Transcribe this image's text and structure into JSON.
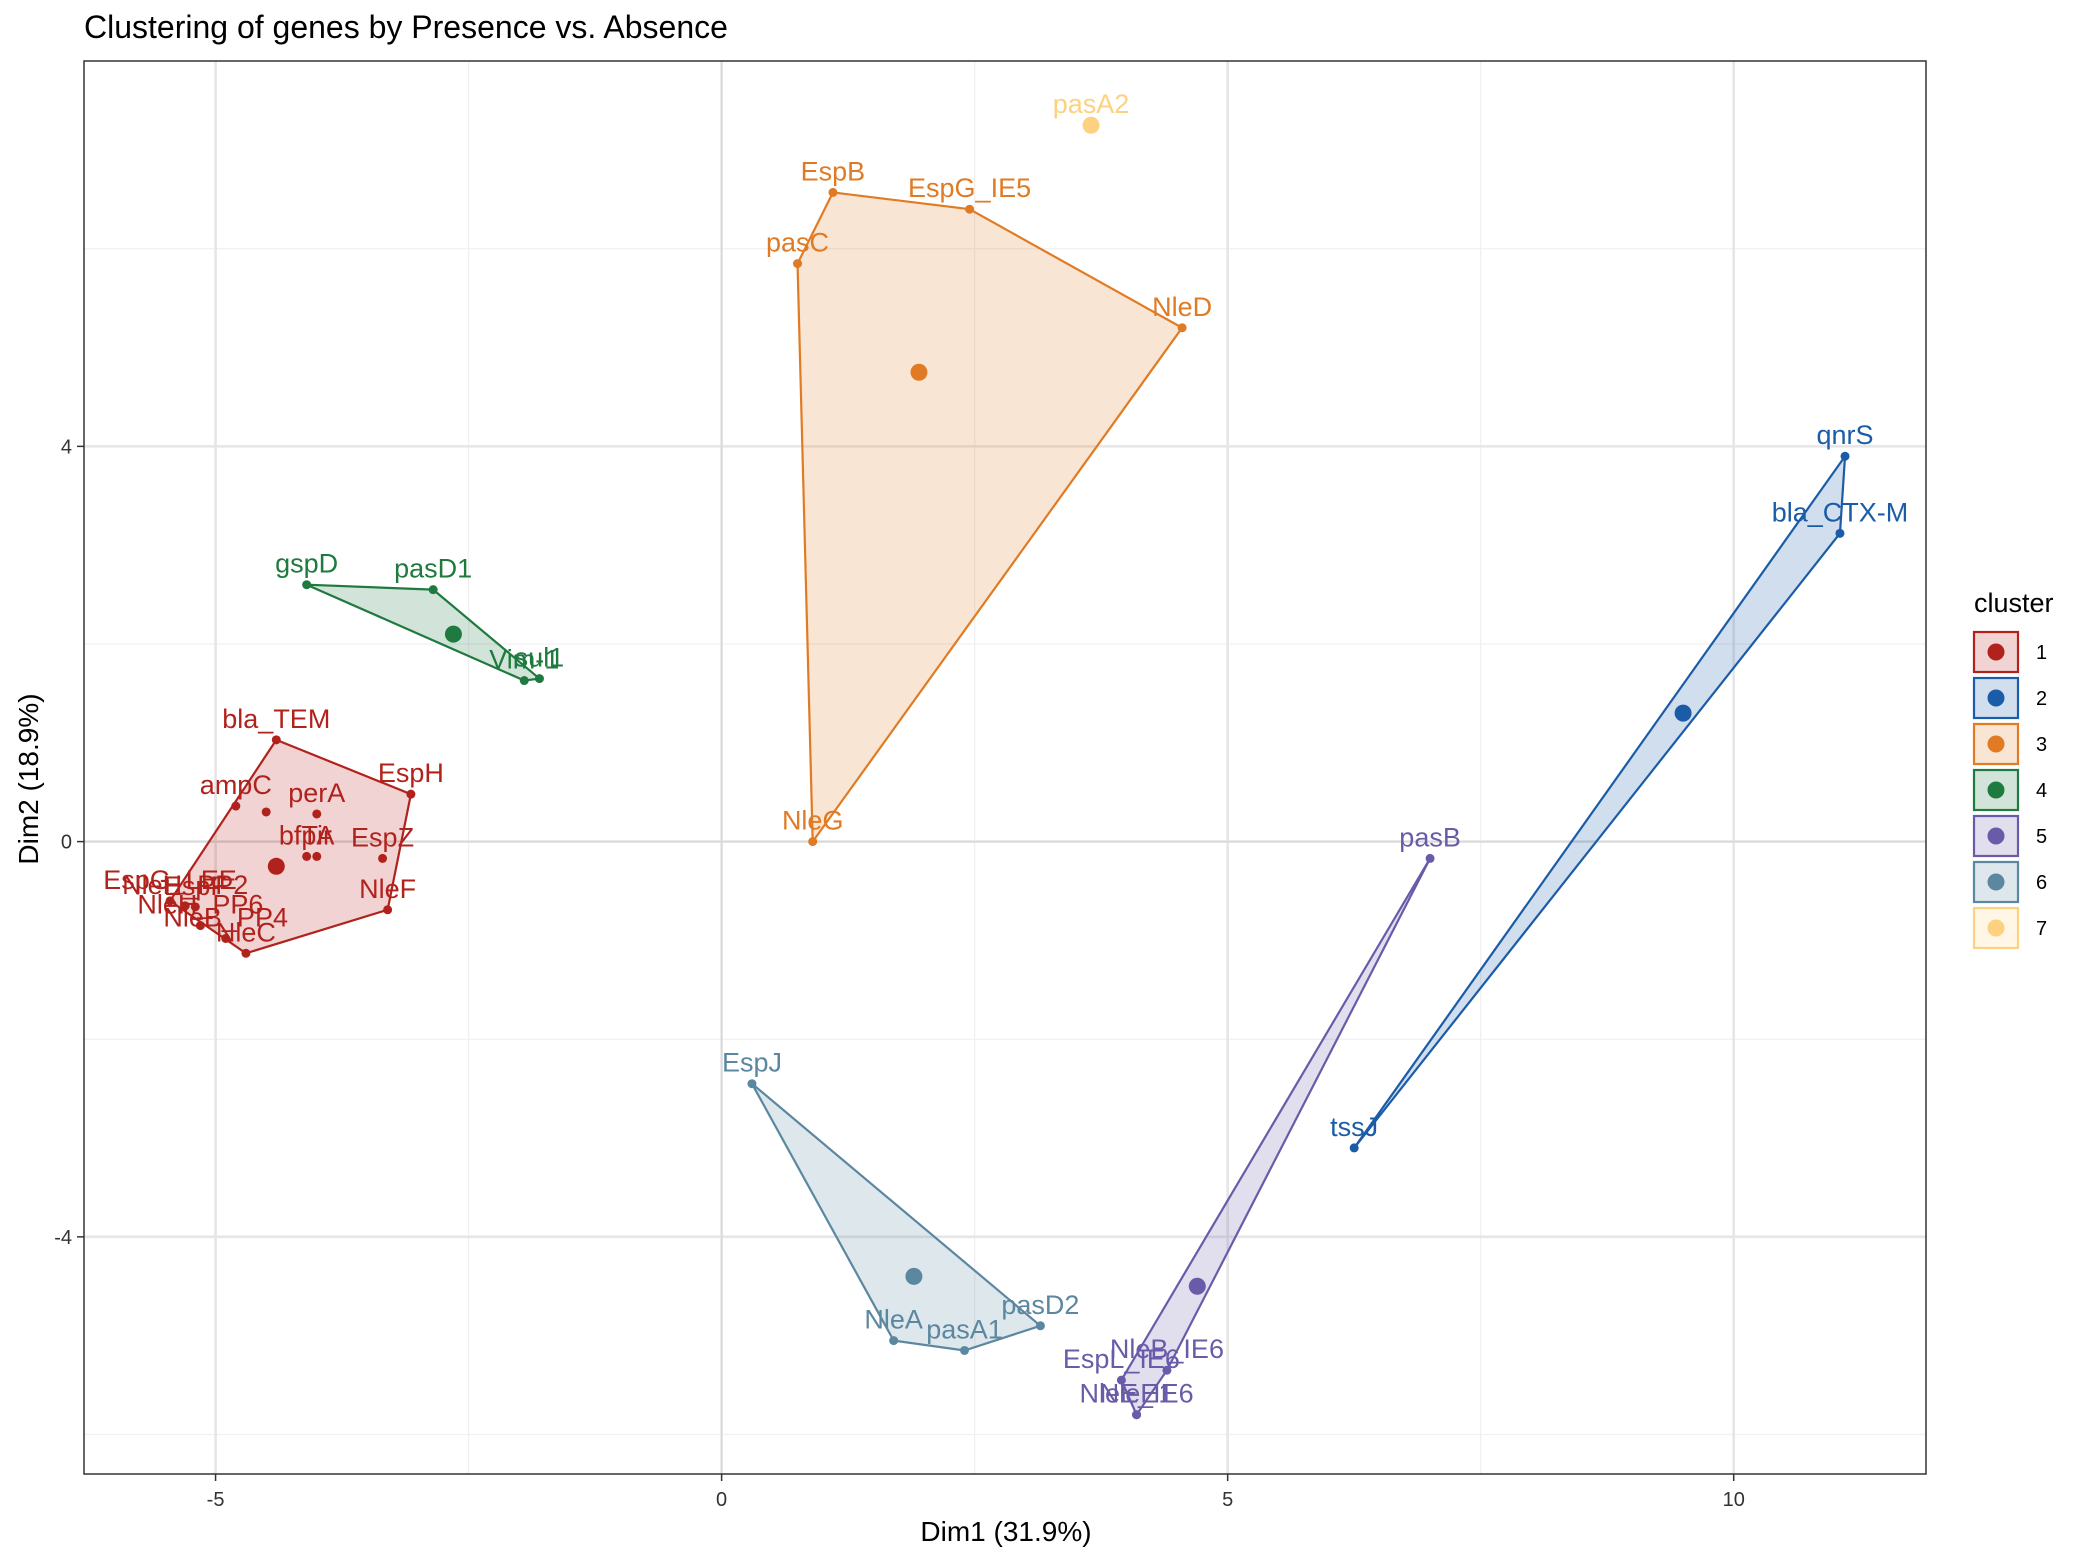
{
  "chart_data": {
    "type": "scatter",
    "title": "Clustering of genes by Presence vs. Absence",
    "xlabel": "Dim1 (31.9%)",
    "ylabel": "Dim2 (18.9%)",
    "xlim": [
      -6.3,
      11.9
    ],
    "ylim": [
      -6.4,
      7.9
    ],
    "xticks": [
      -5,
      0,
      5,
      10
    ],
    "xtick_labels": [
      "-5",
      "0",
      "5",
      "10"
    ],
    "yticks": [
      -4,
      0,
      4
    ],
    "ytick_labels": [
      "-4",
      "0",
      "4"
    ],
    "grid": true,
    "legend": {
      "title": "cluster",
      "position": "right",
      "entries": [
        "1",
        "2",
        "3",
        "4",
        "5",
        "6",
        "7"
      ]
    },
    "series": [
      {
        "name": "1",
        "color": "#B2221C",
        "centroid": [
          -4.4,
          -0.25
        ],
        "hull": [
          [
            -4.4,
            1.03
          ],
          [
            -3.07,
            0.48
          ],
          [
            -3.3,
            -0.69
          ],
          [
            -4.7,
            -1.13
          ],
          [
            -5.45,
            -0.6
          ]
        ],
        "points": [
          {
            "label": "bla_TEM",
            "x": -4.4,
            "y": 1.03
          },
          {
            "label": "EspH",
            "x": -3.07,
            "y": 0.48
          },
          {
            "label": "ampC",
            "x": -4.8,
            "y": 0.36
          },
          {
            "label": "",
            "x": -4.5,
            "y": 0.3
          },
          {
            "label": "perA",
            "x": -4.0,
            "y": 0.28
          },
          {
            "label": "bfpA",
            "x": -4.1,
            "y": -0.15
          },
          {
            "label": "EspZ",
            "x": -3.35,
            "y": -0.17
          },
          {
            "label": "NleH_PP2",
            "x": -5.3,
            "y": -0.65
          },
          {
            "label": "EspG_LEE",
            "x": -5.45,
            "y": -0.6
          },
          {
            "label": "EspF",
            "x": -5.2,
            "y": -0.66
          },
          {
            "label": "NleF",
            "x": -3.3,
            "y": -0.69
          },
          {
            "label": "NleH_PP6",
            "x": -5.15,
            "y": -0.85
          },
          {
            "label": "NleB_PP4",
            "x": -4.9,
            "y": -0.98
          },
          {
            "label": "NleC",
            "x": -4.7,
            "y": -1.13
          },
          {
            "label": "Tir",
            "x": -4.0,
            "y": -0.15
          }
        ]
      },
      {
        "name": "2",
        "color": "#1B5CA8",
        "centroid": [
          9.5,
          1.3
        ],
        "hull": [
          [
            11.1,
            3.9
          ],
          [
            11.05,
            3.12
          ],
          [
            6.25,
            -3.1
          ]
        ],
        "points": [
          {
            "label": "qnrS",
            "x": 11.1,
            "y": 3.9
          },
          {
            "label": "bla_CTX-M",
            "x": 11.05,
            "y": 3.12
          },
          {
            "label": "tssJ",
            "x": 6.25,
            "y": -3.1
          }
        ]
      },
      {
        "name": "3",
        "color": "#E07B24",
        "centroid": [
          1.95,
          4.75
        ],
        "hull": [
          [
            1.1,
            6.57
          ],
          [
            2.45,
            6.4
          ],
          [
            4.55,
            5.2
          ],
          [
            0.9,
            0.0
          ],
          [
            0.75,
            5.85
          ]
        ],
        "points": [
          {
            "label": "EspB",
            "x": 1.1,
            "y": 6.57
          },
          {
            "label": "EspG_IE5",
            "x": 2.45,
            "y": 6.4
          },
          {
            "label": "pasC",
            "x": 0.75,
            "y": 5.85
          },
          {
            "label": "NleD",
            "x": 4.55,
            "y": 5.2
          },
          {
            "label": "NleG",
            "x": 0.9,
            "y": 0.0
          }
        ]
      },
      {
        "name": "4",
        "color": "#1E7A3F",
        "centroid": [
          -2.65,
          2.1
        ],
        "hull": [
          [
            -4.1,
            2.6
          ],
          [
            -2.85,
            2.55
          ],
          [
            -1.8,
            1.65
          ],
          [
            -1.95,
            1.63
          ]
        ],
        "points": [
          {
            "label": "gspD",
            "x": -4.1,
            "y": 2.6
          },
          {
            "label": "pasD1",
            "x": -2.85,
            "y": 2.55
          },
          {
            "label": "sul1",
            "x": -1.8,
            "y": 1.65
          },
          {
            "label": "Vim-1",
            "x": -1.95,
            "y": 1.63
          }
        ]
      },
      {
        "name": "5",
        "color": "#6A5BA8",
        "centroid": [
          4.7,
          -4.5
        ],
        "hull": [
          [
            7.0,
            -0.17
          ],
          [
            4.4,
            -5.35
          ],
          [
            4.1,
            -5.8
          ],
          [
            3.95,
            -5.45
          ]
        ],
        "points": [
          {
            "label": "pasB",
            "x": 7.0,
            "y": -0.17
          },
          {
            "label": "NleB_IE6",
            "x": 4.4,
            "y": -5.35
          },
          {
            "label": "EspL_IE6",
            "x": 3.95,
            "y": -5.45
          },
          {
            "label": "NleE_IE6",
            "x": 4.1,
            "y": -5.8
          },
          {
            "label": "NleE1",
            "x": 4.1,
            "y": -5.8
          }
        ]
      },
      {
        "name": "6",
        "color": "#5B87A0",
        "centroid": [
          1.9,
          -4.4
        ],
        "hull": [
          [
            0.3,
            -2.45
          ],
          [
            3.15,
            -4.9
          ],
          [
            2.4,
            -5.15
          ],
          [
            1.7,
            -5.05
          ]
        ],
        "points": [
          {
            "label": "EspJ",
            "x": 0.3,
            "y": -2.45
          },
          {
            "label": "pasD2",
            "x": 3.15,
            "y": -4.9
          },
          {
            "label": "NleA",
            "x": 1.7,
            "y": -5.05
          },
          {
            "label": "pasA1",
            "x": 2.4,
            "y": -5.15
          }
        ]
      },
      {
        "name": "7",
        "color": "#FDD17F",
        "centroid": [
          3.65,
          7.25
        ],
        "hull": [],
        "points": [
          {
            "label": "pasA2",
            "x": 3.65,
            "y": 7.25
          }
        ]
      }
    ]
  }
}
